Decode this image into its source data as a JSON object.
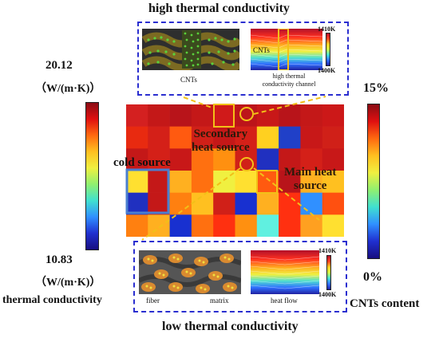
{
  "top_title": "high thermal conductivity",
  "bottom_title": "low thermal conductivity",
  "left_bar": {
    "max_value": "20.12",
    "max_unit": "（W/(m·K)）",
    "min_value": "10.83",
    "min_unit": "（W/(m·K)）",
    "caption": "thermal conductivity"
  },
  "right_bar": {
    "max": "15%",
    "min": "0%",
    "caption": "CNTs content"
  },
  "top_inset": {
    "left_caption": "CNTs",
    "right_label": "CNTs",
    "right_caption_line1": "high thermal",
    "right_caption_line2": "conductivity channel",
    "scale_max": "1410K",
    "scale_min": "1400K"
  },
  "bottom_inset": {
    "left_caption_fiber": "fiber",
    "left_caption_matrix": "matrix",
    "right_caption": "heat flow",
    "scale_max": "1410K",
    "scale_min": "1400K"
  },
  "annotations": {
    "secondary_line1": "Secondary",
    "secondary_line2": "heat source",
    "cold": "cold source",
    "main_line1": "Main heat",
    "main_line2": "source"
  },
  "colors": {
    "dash_blue": "#2b2fd0",
    "highlight_yellow": "#f2c018"
  }
}
